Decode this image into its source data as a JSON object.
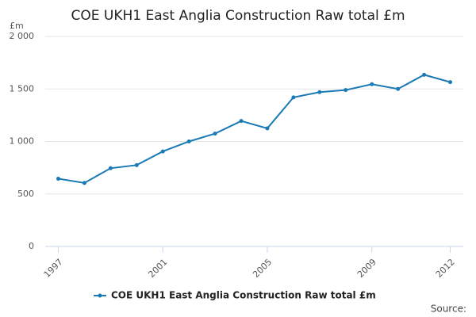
{
  "chart_data": {
    "type": "line",
    "title": "COE UKH1 East Anglia Construction Raw total £m",
    "y_label": "£m",
    "x": [
      1997,
      1998,
      1999,
      2000,
      2001,
      2002,
      2003,
      2004,
      2005,
      2006,
      2007,
      2008,
      2009,
      2010,
      2011,
      2012
    ],
    "series": [
      {
        "name": "COE UKH1 East Anglia Construction Raw total £m",
        "color": "#1a7ab5",
        "values": [
          645,
          605,
          745,
          775,
          905,
          1000,
          1075,
          1195,
          1125,
          1420,
          1470,
          1490,
          1545,
          1500,
          1635,
          1565
        ]
      }
    ],
    "xlim": [
      1996.5,
      2012.5
    ],
    "xticks": [
      1997,
      2001,
      2005,
      2009,
      2012
    ],
    "ylim": [
      0,
      2000
    ],
    "yticks": [
      0,
      500,
      {
        "value": 1000,
        "label": "1 000"
      },
      {
        "value": 1500,
        "label": "1 500"
      },
      {
        "value": 2000,
        "label": "2 000"
      }
    ],
    "grid": true,
    "legend": "bottom",
    "source": "Source:"
  }
}
